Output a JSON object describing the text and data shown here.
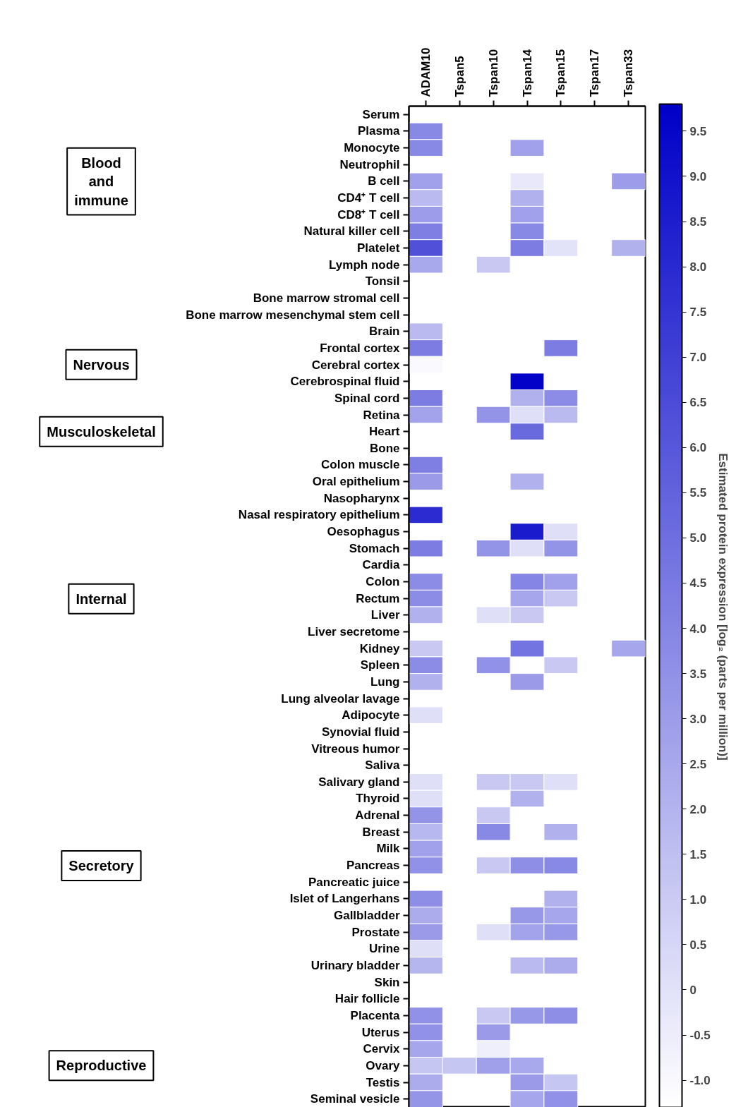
{
  "chart_data": {
    "type": "heatmap",
    "categories": [
      "ADAM10",
      "Tspan5",
      "Tspan10",
      "Tspan14",
      "Tspan15",
      "Tspan17",
      "Tspan33"
    ],
    "y_categories": [
      "Serum",
      "Plasma",
      "Monocyte",
      "Neutrophil",
      "B cell",
      "CD4⁺ T cell",
      "CD8⁺ T cell",
      "Natural killer cell",
      "Platelet",
      "Lymph node",
      "Tonsil",
      "Bone marrow stromal cell",
      "Bone marrow mesenchymal stem cell",
      "Brain",
      "Frontal cortex",
      "Cerebral cortex",
      "Cerebrospinal fluid",
      "Spinal cord",
      "Retina",
      "Heart",
      "Bone",
      "Colon muscle",
      "Oral epithelium",
      "Nasopharynx",
      "Nasal respiratory epithelium",
      "Oesophagus",
      "Stomach",
      "Cardia",
      "Colon",
      "Rectum",
      "Liver",
      "Liver secretome",
      "Kidney",
      "Spleen",
      "Lung",
      "Lung alveolar lavage",
      "Adipocyte",
      "Synovial fluid",
      "Vitreous humor",
      "Saliva",
      "Salivary gland",
      "Thyroid",
      "Adrenal",
      "Breast",
      "Milk",
      "Pancreas",
      "Pancreatic juice",
      "Islet of Langerhans",
      "Gallbladder",
      "Prostate",
      "Urine",
      "Urinary bladder",
      "Skin",
      "Hair follicle",
      "Placenta",
      "Uterus",
      "Cervix",
      "Ovary",
      "Testis",
      "Seminal vesicle"
    ],
    "cells": [
      [
        null,
        null,
        null,
        null,
        null,
        null,
        null
      ],
      [
        3.9,
        null,
        null,
        null,
        null,
        null,
        null
      ],
      [
        3.9,
        null,
        null,
        2.8,
        null,
        null,
        null
      ],
      [
        null,
        null,
        null,
        null,
        null,
        null,
        null
      ],
      [
        2.8,
        null,
        null,
        -0.3,
        null,
        null,
        3.0
      ],
      [
        1.7,
        null,
        null,
        2.1,
        null,
        null,
        null
      ],
      [
        3.0,
        null,
        null,
        2.8,
        null,
        null,
        null
      ],
      [
        4.3,
        null,
        null,
        3.9,
        null,
        null,
        null
      ],
      [
        6.3,
        null,
        null,
        4.4,
        0.0,
        null,
        2.1
      ],
      [
        2.5,
        null,
        1.1,
        null,
        null,
        null,
        null
      ],
      [
        null,
        null,
        null,
        null,
        null,
        null,
        null
      ],
      [
        null,
        null,
        null,
        null,
        null,
        null,
        null
      ],
      [
        null,
        null,
        null,
        null,
        null,
        null,
        null
      ],
      [
        1.7,
        null,
        null,
        null,
        null,
        null,
        null
      ],
      [
        4.4,
        null,
        null,
        null,
        4.4,
        null,
        null
      ],
      [
        -1.0,
        null,
        null,
        null,
        null,
        null,
        null
      ],
      [
        null,
        null,
        null,
        9.7,
        null,
        null,
        null
      ],
      [
        4.4,
        null,
        null,
        2.1,
        3.7,
        null,
        null
      ],
      [
        2.7,
        null,
        3.4,
        0.1,
        1.7,
        null,
        null
      ],
      [
        null,
        null,
        null,
        5.2,
        null,
        null,
        null
      ],
      [
        null,
        null,
        null,
        null,
        null,
        null,
        null
      ],
      [
        4.3,
        null,
        null,
        null,
        null,
        null,
        null
      ],
      [
        3.1,
        null,
        null,
        2.1,
        null,
        null,
        null
      ],
      [
        null,
        null,
        null,
        null,
        null,
        null,
        null
      ],
      [
        7.9,
        null,
        null,
        null,
        null,
        null,
        null
      ],
      [
        null,
        null,
        null,
        8.6,
        0.1,
        null,
        null
      ],
      [
        4.4,
        null,
        3.4,
        0.1,
        3.4,
        null,
        null
      ],
      [
        null,
        null,
        null,
        null,
        null,
        null,
        null
      ],
      [
        3.7,
        null,
        null,
        4.0,
        2.8,
        null,
        null
      ],
      [
        3.7,
        null,
        null,
        2.6,
        1.1,
        null,
        null
      ],
      [
        2.1,
        null,
        0.1,
        1.1,
        null,
        null,
        null
      ],
      [
        null,
        null,
        null,
        null,
        null,
        null,
        null
      ],
      [
        1.1,
        null,
        null,
        4.8,
        null,
        null,
        2.6
      ],
      [
        3.7,
        null,
        3.5,
        null,
        1.1,
        null,
        null
      ],
      [
        2.1,
        null,
        null,
        3.1,
        null,
        null,
        null
      ],
      [
        null,
        null,
        null,
        null,
        null,
        null,
        null
      ],
      [
        0.1,
        null,
        null,
        null,
        null,
        null,
        null
      ],
      [
        null,
        null,
        null,
        null,
        null,
        null,
        null
      ],
      [
        null,
        null,
        null,
        null,
        null,
        null,
        null
      ],
      [
        null,
        null,
        null,
        null,
        null,
        null,
        null
      ],
      [
        0.1,
        null,
        1.1,
        1.1,
        0.1,
        null,
        null
      ],
      [
        0.1,
        null,
        null,
        2.1,
        null,
        null,
        null
      ],
      [
        3.4,
        null,
        1.1,
        null,
        null,
        null,
        null
      ],
      [
        1.8,
        null,
        3.9,
        null,
        2.1,
        null,
        null
      ],
      [
        2.8,
        null,
        null,
        null,
        null,
        null,
        null
      ],
      [
        3.5,
        null,
        1.1,
        3.6,
        3.9,
        null,
        null
      ],
      [
        null,
        null,
        null,
        null,
        null,
        null,
        null
      ],
      [
        3.6,
        null,
        null,
        null,
        2.1,
        null,
        null
      ],
      [
        2.3,
        null,
        null,
        3.2,
        2.6,
        null,
        null
      ],
      [
        3.1,
        null,
        0.1,
        2.7,
        3.2,
        null,
        null
      ],
      [
        0.1,
        null,
        null,
        null,
        null,
        null,
        null
      ],
      [
        1.9,
        null,
        null,
        1.7,
        2.3,
        null,
        null
      ],
      [
        null,
        null,
        null,
        null,
        null,
        null,
        null
      ],
      [
        null,
        null,
        null,
        null,
        null,
        null,
        null
      ],
      [
        3.5,
        null,
        1.1,
        3.2,
        3.6,
        null,
        null
      ],
      [
        3.5,
        null,
        3.1,
        null,
        null,
        null,
        null
      ],
      [
        2.6,
        null,
        -0.6,
        null,
        null,
        null,
        null
      ],
      [
        1.2,
        1.2,
        2.9,
        2.5,
        null,
        null,
        null
      ],
      [
        2.3,
        null,
        null,
        3.1,
        1.2,
        null,
        null
      ],
      [
        3.3,
        null,
        null,
        2.6,
        3.5,
        null,
        null
      ]
    ],
    "clim": [
      -1.3,
      9.8
    ],
    "cticks": [
      {
        "value": -1.0,
        "label": "-1.0"
      },
      -0.5,
      0,
      0.5,
      {
        "value": 1.0,
        "label": "1.0"
      },
      1.5,
      {
        "value": 2.0,
        "label": "2.0"
      },
      2.5,
      {
        "value": 3.0,
        "label": "3.0"
      },
      3.5,
      {
        "value": 4.0,
        "label": "4.0"
      },
      4.5,
      {
        "value": 5.0,
        "label": "5.0"
      },
      5.5,
      {
        "value": 6.0,
        "label": "6.0"
      },
      6.5,
      {
        "value": 7.0,
        "label": "7.0"
      },
      7.5,
      {
        "value": 8.0,
        "label": "8.0"
      },
      8.5,
      {
        "value": 9.0,
        "label": "9.0"
      },
      9.5
    ],
    "clabel": "Estimated protein expression [log₂ (parts per million)]",
    "annotations": [
      "Blood and immune",
      "Nervous",
      "Musculoskeletal",
      "Internal",
      "Secretory",
      "Reproductive"
    ]
  }
}
